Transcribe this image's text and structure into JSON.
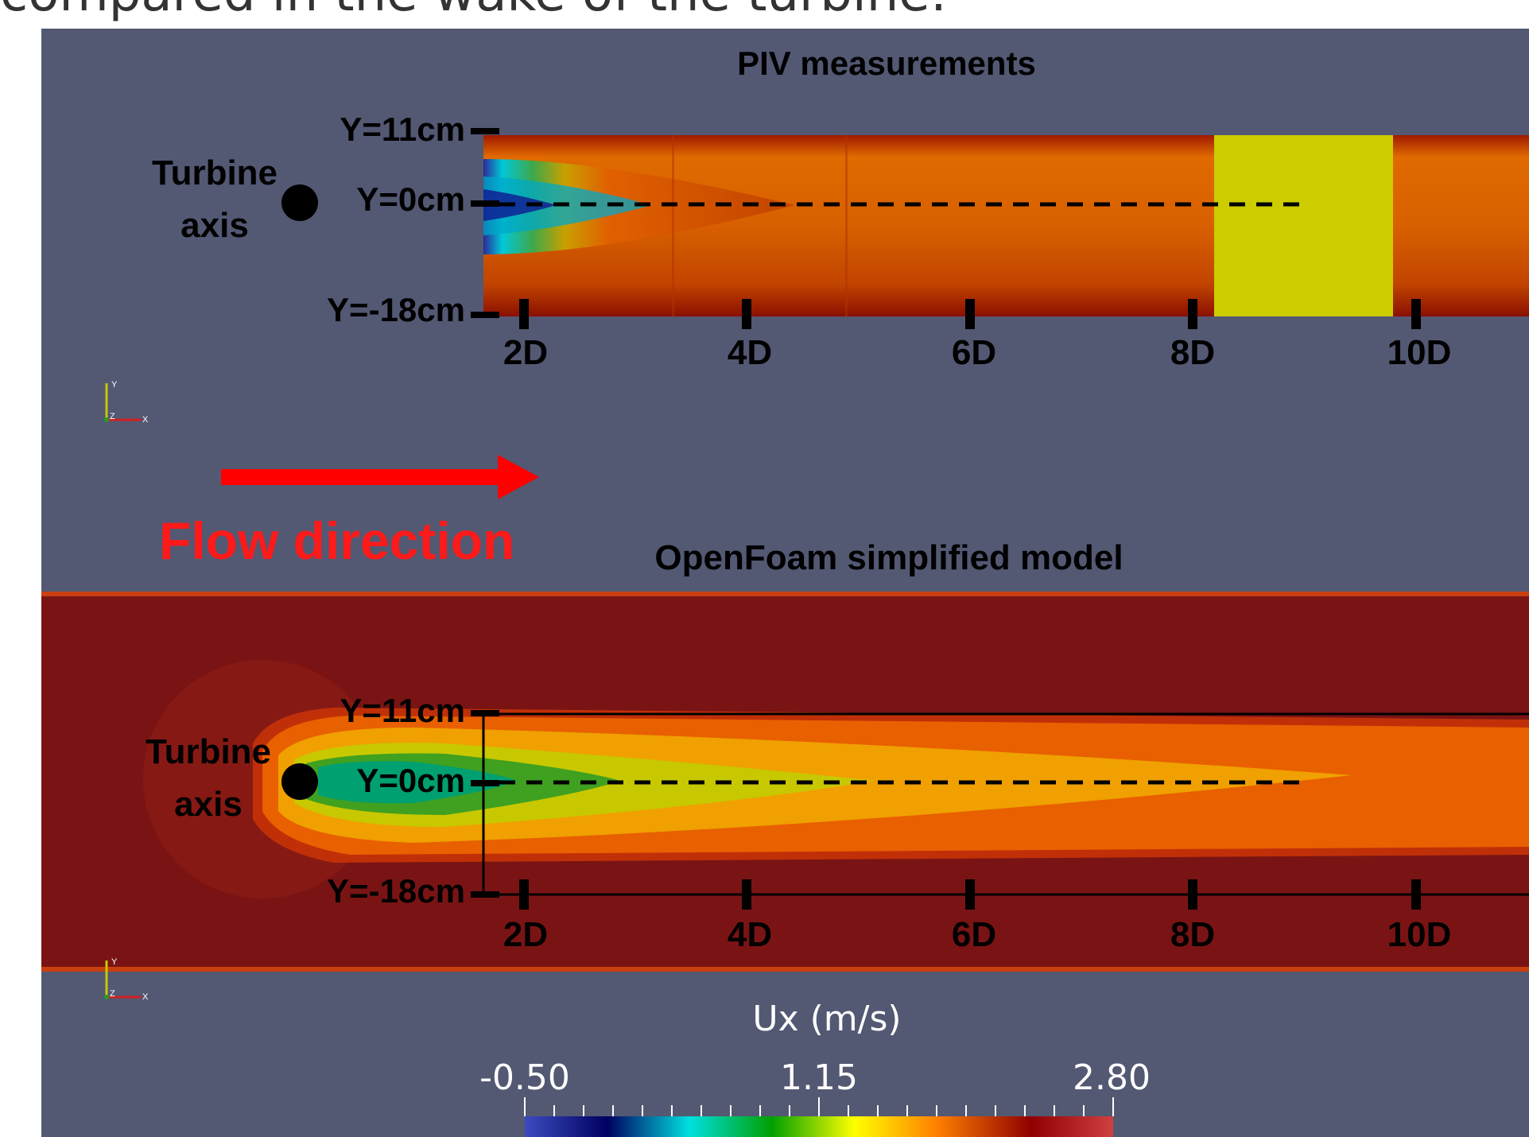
{
  "slide_heading": "compared in the wake of the turbine:",
  "piv_panel": {
    "title": "PIV measurements",
    "turbine_label_line1": "Turbine",
    "turbine_label_line2": "axis",
    "y_labels": [
      "Y=11cm",
      "Y=0cm",
      "Y=-18cm"
    ],
    "x_labels": [
      "2D",
      "4D",
      "6D",
      "8D",
      "10D"
    ]
  },
  "flow": {
    "label": "Flow direction",
    "arrow_color": "#ff0000"
  },
  "openfoam_panel": {
    "title": "OpenFoam simplified model",
    "turbine_label_line1": "Turbine",
    "turbine_label_line2": "axis",
    "y_labels": [
      "Y=11cm",
      "Y=0cm",
      "Y=-18cm"
    ],
    "x_labels": [
      "2D",
      "4D",
      "6D",
      "8D",
      "10D"
    ]
  },
  "axes_triad": {
    "y": "Y",
    "z": "Z",
    "x": "X"
  },
  "colorbar": {
    "title": "Ux (m/s)",
    "min_label": "-0.50",
    "mid_label": "1.15",
    "max_label": "2.80",
    "range": [
      -0.5,
      2.8
    ],
    "colors": [
      "#3b4cc0",
      "#000060",
      "#00e0e0",
      "#00a000",
      "#ffff00",
      "#ff8000",
      "#900000",
      "#d04040"
    ]
  },
  "theme": {
    "background": "#535873",
    "text": "#000000"
  }
}
